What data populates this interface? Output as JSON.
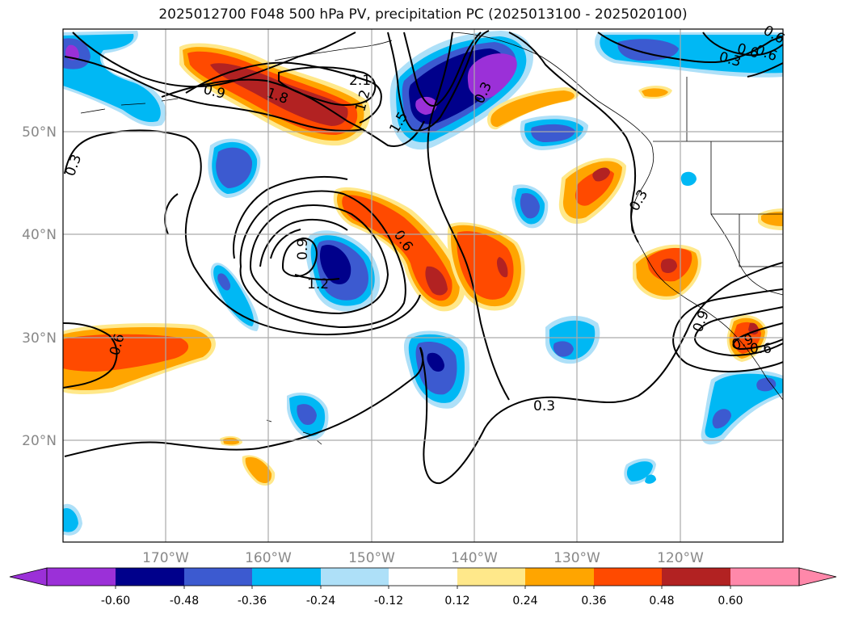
{
  "title": "2025012700 F048 500 hPa PV, precipitation PC (2025013100 - 2025020100)",
  "axes": {
    "lat_labels": [
      "50°N",
      "40°N",
      "30°N",
      "20°N"
    ],
    "lon_labels": [
      "170°W",
      "160°W",
      "150°W",
      "140°W",
      "130°W",
      "120°W"
    ]
  },
  "pv_contour_labels": [
    "0.3",
    "0.6",
    "0.9",
    "1.2",
    "1.5",
    "1.8",
    "2.1",
    "0.3",
    "0.6",
    "0.9",
    "1.2",
    "0.3",
    "0.6",
    "0.9",
    "0.6",
    "0.6",
    "0.3",
    "0.3",
    "0.9",
    "0.6"
  ],
  "colorbar": {
    "tick_labels": [
      "-0.60",
      "-0.48",
      "-0.36",
      "-0.24",
      "-0.12",
      "0.12",
      "0.24",
      "0.36",
      "0.48",
      "0.60"
    ],
    "colors": [
      "#9b30d8",
      "#00008b",
      "#3c5ad0",
      "#00b8f4",
      "#aee0f8",
      "#ffffff",
      "#ffe88a",
      "#ffa500",
      "#ff4a00",
      "#b22222",
      "#ff88aa"
    ]
  }
}
